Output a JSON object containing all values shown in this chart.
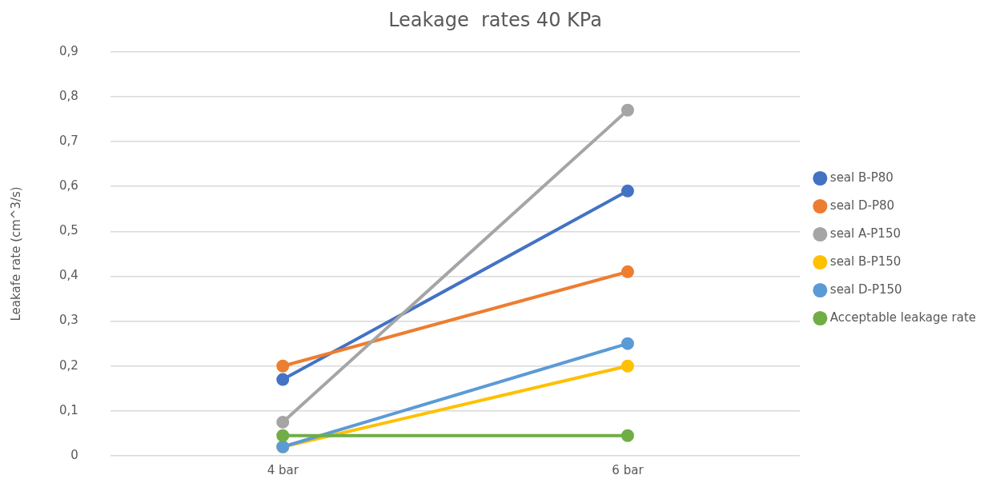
{
  "chart_data": {
    "type": "line",
    "title": "Leakage  rates 40 KPa",
    "ylabel": "Leakafe rate (cm^3/s)",
    "categories": [
      "4 bar",
      "6 bar"
    ],
    "series": [
      {
        "name": "seal B-P80",
        "color": "#4472c4",
        "values": [
          0.17,
          0.59
        ]
      },
      {
        "name": "seal D-P80",
        "color": "#ed7d31",
        "values": [
          0.2,
          0.41
        ]
      },
      {
        "name": "seal A-P150",
        "color": "#a5a5a5",
        "values": [
          0.075,
          0.77
        ]
      },
      {
        "name": "seal B-P150",
        "color": "#ffc000",
        "values": [
          0.02,
          0.2
        ]
      },
      {
        "name": "seal D-P150",
        "color": "#5b9bd5",
        "values": [
          0.02,
          0.25
        ]
      },
      {
        "name": "Acceptable leakage rate",
        "color": "#70ad47",
        "values": [
          0.045,
          0.045
        ]
      }
    ],
    "ylim": [
      0,
      0.9
    ],
    "yticks": [
      0,
      {
        "value": 0.1,
        "label": "0,1"
      },
      {
        "value": 0.2,
        "label": "0,2"
      },
      {
        "value": 0.3,
        "label": "0,3"
      },
      {
        "value": 0.4,
        "label": "0,4"
      },
      {
        "value": 0.5,
        "label": "0,5"
      },
      {
        "value": 0.6,
        "label": "0,6"
      },
      {
        "value": 0.7,
        "label": "0,7"
      },
      {
        "value": 0.8,
        "label": "0,8"
      },
      {
        "value": 0.9,
        "label": "0,9"
      }
    ],
    "grid": "y",
    "legend": "right",
    "marker": "circle",
    "line_style": "solid"
  }
}
